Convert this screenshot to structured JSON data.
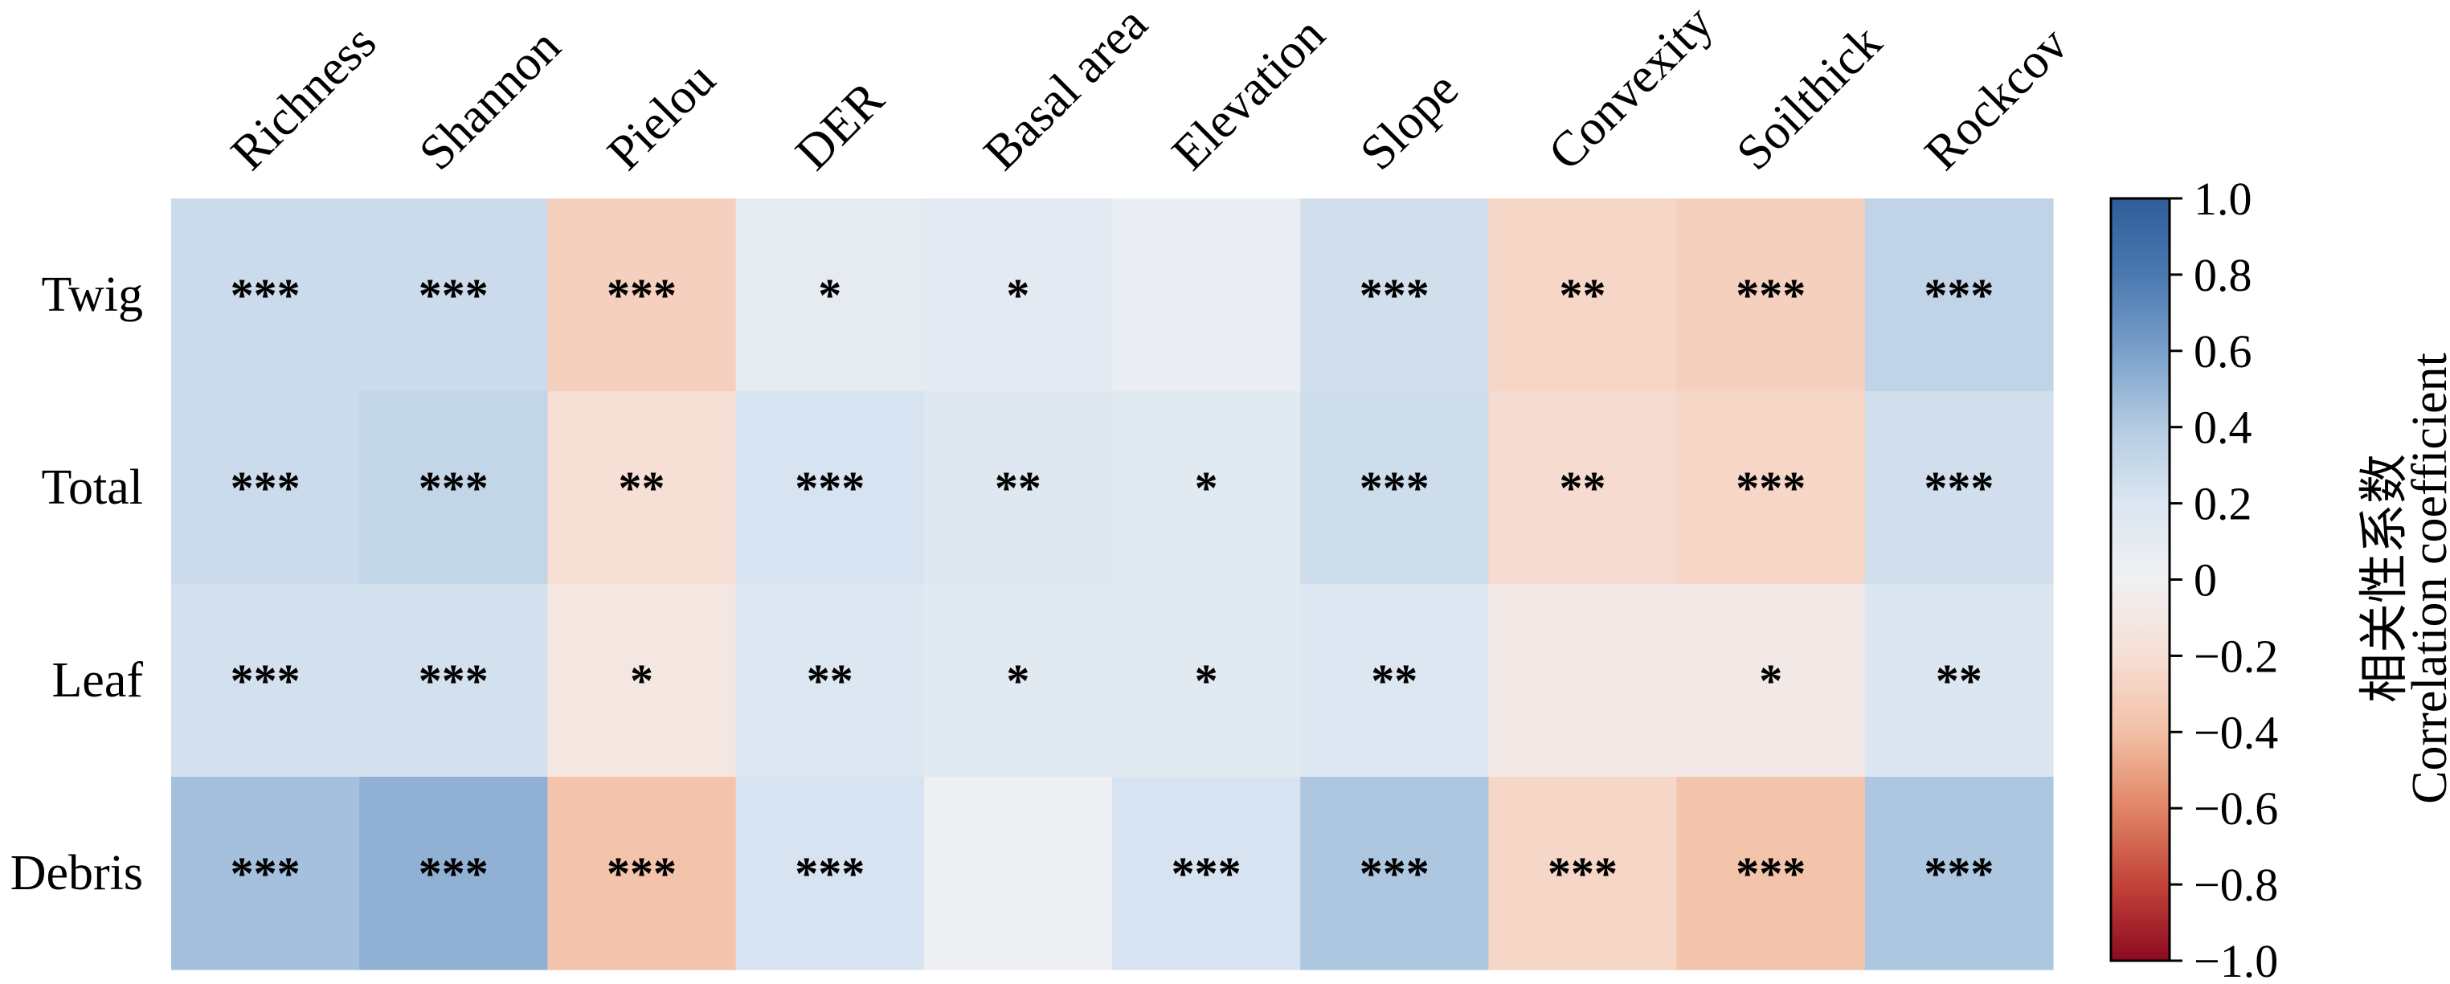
{
  "chart_data": {
    "type": "heatmap",
    "columns": [
      "Richness",
      "Shannon",
      "Pielou",
      "DER",
      "Basal area",
      "Elevation",
      "Slope",
      "Convexity",
      "Soilthick",
      "Rockcov"
    ],
    "rows": [
      "Twig",
      "Total",
      "Leaf",
      "Debris"
    ],
    "values": [
      [
        0.28,
        0.28,
        -0.3,
        0.1,
        0.12,
        0.06,
        0.25,
        -0.26,
        -0.3,
        0.33
      ],
      [
        0.28,
        0.32,
        -0.2,
        0.22,
        0.16,
        0.14,
        0.27,
        -0.22,
        -0.26,
        0.25
      ],
      [
        0.24,
        0.24,
        -0.12,
        0.18,
        0.14,
        0.14,
        0.18,
        -0.08,
        -0.08,
        0.2
      ],
      [
        0.45,
        0.52,
        -0.38,
        0.22,
        0.02,
        0.22,
        0.42,
        -0.26,
        -0.38,
        0.42
      ]
    ],
    "significance": [
      [
        "***",
        "***",
        "***",
        "*",
        "*",
        "",
        "***",
        "**",
        "***",
        "***"
      ],
      [
        "***",
        "***",
        "**",
        "***",
        "**",
        "*",
        "***",
        "**",
        "***",
        "***"
      ],
      [
        "***",
        "***",
        "*",
        "**",
        "*",
        "*",
        "**",
        "",
        "*",
        "**"
      ],
      [
        "***",
        "***",
        "***",
        "***",
        "",
        "***",
        "***",
        "***",
        "***",
        "***"
      ]
    ],
    "colorbar": {
      "range": [
        -1.0,
        1.0
      ],
      "ticks": [
        "1.0",
        "0.8",
        "0.6",
        "0.4",
        "0.2",
        "0",
        "−0.2",
        "−0.4",
        "−0.6",
        "−0.8",
        "−1.0"
      ],
      "label_cn": "相关性系数",
      "label_en": "Correlation coefficient",
      "colormap": "RdBu"
    }
  }
}
